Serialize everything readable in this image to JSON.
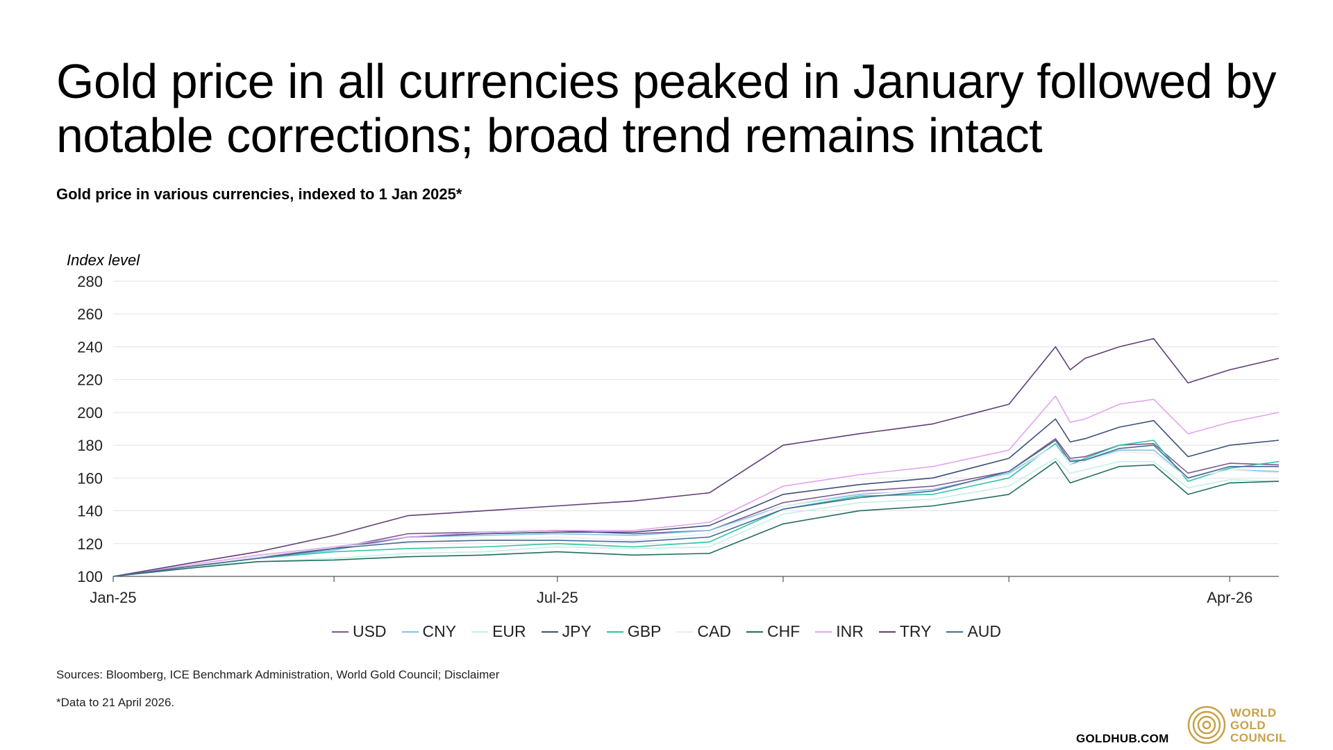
{
  "header": {
    "title": "Gold price in all currencies peaked in January followed by notable corrections; broad trend remains intact",
    "subtitle": "Gold price in various currencies, indexed to 1 Jan 2025*"
  },
  "footer": {
    "sources": "Sources: Bloomberg, ICE Benchmark Administration, World Gold Council; Disclaimer",
    "footnote": "*Data to 21 April 2026.",
    "site": "GOLDHUB.COM",
    "logo_lines": [
      "WORLD",
      "GOLD",
      "COUNCIL"
    ],
    "logo_icon": "concentric-rings-logo",
    "logo_color": "#c8a046"
  },
  "chart_data": {
    "type": "line",
    "ylabel": "Index level",
    "xlabel": "",
    "ylim": [
      100,
      280
    ],
    "yticks": [
      100,
      120,
      140,
      160,
      180,
      200,
      220,
      240,
      260,
      280
    ],
    "xlim": [
      "2025-01-01",
      "2026-04-21"
    ],
    "x_tick_labels": [
      {
        "date": "2025-01-01",
        "label": "Jan-25"
      },
      {
        "date": "2025-07-01",
        "label": "Jul-25"
      },
      {
        "date": "2026-04-01",
        "label": "Apr-26"
      }
    ],
    "x_minor_ticks": [
      "2025-04-01",
      "2025-10-01",
      "2026-01-01"
    ],
    "grid": "horizontal",
    "legend_position": "bottom",
    "x": [
      "2025-01-01",
      "2025-02-01",
      "2025-03-01",
      "2025-04-01",
      "2025-05-01",
      "2025-06-01",
      "2025-07-01",
      "2025-08-01",
      "2025-09-01",
      "2025-10-01",
      "2025-11-01",
      "2025-12-01",
      "2026-01-01",
      "2026-01-20",
      "2026-01-26",
      "2026-02-01",
      "2026-02-15",
      "2026-03-01",
      "2026-03-15",
      "2026-04-01",
      "2026-04-21"
    ],
    "series": [
      {
        "name": "USD",
        "color": "#7a5a8c",
        "values": [
          100,
          106,
          112,
          117,
          126,
          127,
          128,
          126,
          128,
          145,
          152,
          155,
          164,
          184,
          172,
          173,
          180,
          181,
          163,
          169,
          168
        ]
      },
      {
        "name": "CNY",
        "color": "#7fc4e8",
        "values": [
          100,
          106,
          111,
          116,
          124,
          125,
          126,
          125,
          128,
          143,
          150,
          153,
          163,
          180,
          171,
          171,
          177,
          177,
          160,
          165,
          164
        ]
      },
      {
        "name": "EUR",
        "color": "#c6efe4",
        "values": [
          100,
          106,
          109,
          111,
          114,
          115,
          118,
          117,
          118,
          138,
          145,
          147,
          155,
          172,
          163,
          165,
          170,
          170,
          154,
          159,
          158
        ]
      },
      {
        "name": "JPY",
        "color": "#3b4f7c",
        "values": [
          100,
          106,
          111,
          117,
          124,
          126,
          127,
          127,
          131,
          150,
          156,
          160,
          172,
          196,
          182,
          184,
          191,
          195,
          173,
          180,
          183
        ]
      },
      {
        "name": "GBP",
        "color": "#2fc4a4",
        "values": [
          100,
          106,
          111,
          115,
          117,
          118,
          120,
          118,
          121,
          141,
          149,
          150,
          160,
          181,
          168,
          172,
          180,
          183,
          158,
          166,
          170
        ]
      },
      {
        "name": "CAD",
        "color": "#e9edf1",
        "values": [
          100,
          106,
          112,
          118,
          121,
          122,
          124,
          122,
          126,
          143,
          151,
          152,
          162,
          180,
          168,
          170,
          176,
          175,
          160,
          165,
          163
        ]
      },
      {
        "name": "CHF",
        "color": "#1f6e5e",
        "values": [
          100,
          105,
          109,
          110,
          112,
          113,
          115,
          113,
          114,
          132,
          140,
          143,
          150,
          170,
          157,
          160,
          167,
          168,
          150,
          157,
          158
        ]
      },
      {
        "name": "INR",
        "color": "#e3a3f0",
        "values": [
          100,
          107,
          113,
          118,
          124,
          127,
          128,
          128,
          133,
          155,
          162,
          167,
          177,
          210,
          194,
          196,
          205,
          208,
          187,
          194,
          200
        ]
      },
      {
        "name": "TRY",
        "color": "#5e3e78",
        "values": [
          100,
          108,
          115,
          125,
          137,
          140,
          143,
          146,
          151,
          180,
          187,
          193,
          205,
          240,
          226,
          233,
          240,
          245,
          218,
          226,
          233
        ]
      },
      {
        "name": "AUD",
        "color": "#4a6a94",
        "values": [
          100,
          106,
          111,
          117,
          121,
          122,
          122,
          121,
          124,
          141,
          148,
          152,
          164,
          183,
          170,
          171,
          178,
          180,
          160,
          167,
          167
        ]
      }
    ]
  }
}
